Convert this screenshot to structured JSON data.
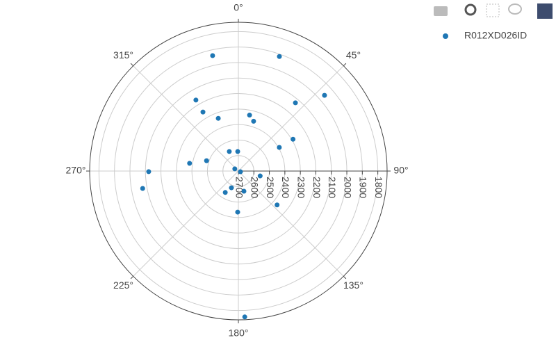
{
  "chart_data": {
    "type": "scatterpolar",
    "series": [
      {
        "name": "R012XD026ID",
        "color": "#1f77b4",
        "theta": [
          347.4,
          19.7,
          48.7,
          39.9,
          329.1,
          329,
          339.1,
          11.3,
          17,
          59.8,
          60,
          335,
          358,
          288,
          279,
          269.6,
          259.7,
          301,
          108,
          102.7,
          164.6,
          202.6,
          211.5,
          181,
          131.2,
          177.5
        ],
        "r": [
          1937,
          1915,
          1960,
          2126,
          2166,
          2256,
          2336,
          2332,
          2364,
          2292,
          2395,
          2561,
          2574,
          2484,
          2381,
          2121,
          2072,
          2673,
          2686,
          2556,
          2565,
          2583,
          2538,
          2435,
          2368,
          1758
        ]
      }
    ],
    "rlim": [
      2700,
      1740
    ],
    "rticks": [
      1800,
      1900,
      2000,
      2100,
      2200,
      2300,
      2400,
      2500,
      2600,
      2700
    ],
    "angularticks": [
      {
        "value": 0,
        "label": "0°"
      },
      {
        "value": 45,
        "label": "45°"
      },
      {
        "value": 90,
        "label": "90°"
      },
      {
        "value": 135,
        "label": "135°"
      },
      {
        "value": 180,
        "label": "180°"
      },
      {
        "value": 225,
        "label": "225°"
      },
      {
        "value": 270,
        "label": "270°"
      },
      {
        "value": 315,
        "label": "315°"
      }
    ],
    "grid": true,
    "legend": "top-right"
  }
}
